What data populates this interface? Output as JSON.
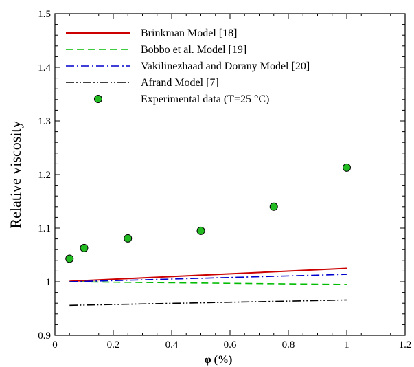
{
  "chart_data": {
    "type": "line",
    "xlabel": "φ (%)",
    "ylabel": "Relative viscosity",
    "xlim": [
      0,
      1.2
    ],
    "ylim": [
      0.9,
      1.5
    ],
    "x_ticks": [
      "0",
      "0.2",
      "0.4",
      "0.6",
      "0.8",
      "1",
      "1.2"
    ],
    "y_ticks": [
      "0.9",
      "1",
      "1.1",
      "1.2",
      "1.3",
      "1.4",
      "1.5"
    ],
    "grid": false,
    "legend_position": "top-left",
    "series": [
      {
        "name": "Brinkman Model [18]",
        "style": "solid",
        "color": "#cc0000",
        "x": [
          0.05,
          1.0
        ],
        "y": [
          1.001,
          1.025
        ]
      },
      {
        "name": "Bobbo et al. Model [19]",
        "style": "dashed",
        "color": "#00bb00",
        "x": [
          0.05,
          1.0
        ],
        "y": [
          1.0,
          0.995
        ]
      },
      {
        "name": "Vakilinezhaad and Dorany Model [20]",
        "style": "dashdot",
        "color": "#0000cc",
        "x": [
          0.05,
          1.0
        ],
        "y": [
          1.0,
          1.014
        ]
      },
      {
        "name": "Afrand Model [7]",
        "style": "dashdotdot",
        "color": "#000000",
        "x": [
          0.05,
          1.0
        ],
        "y": [
          0.956,
          0.966
        ]
      },
      {
        "name": "Experimental data (T=25 °C)",
        "style": "marker",
        "color": "#22bb22",
        "x": [
          0.05,
          0.1,
          0.25,
          0.5,
          0.75,
          1.0
        ],
        "y": [
          1.043,
          1.063,
          1.081,
          1.095,
          1.14,
          1.213
        ]
      }
    ]
  }
}
